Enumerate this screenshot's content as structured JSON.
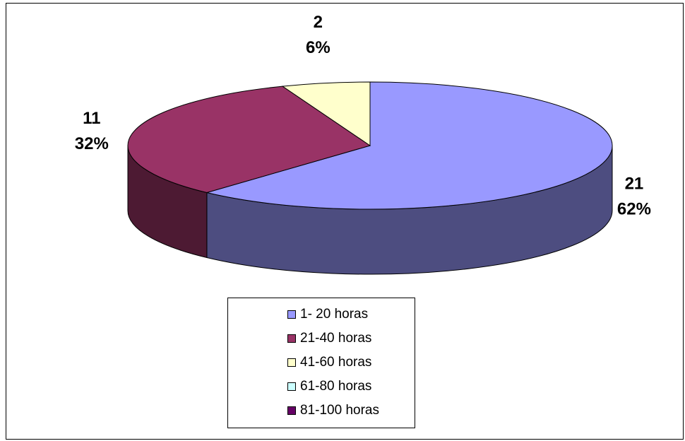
{
  "chart_data": {
    "type": "pie",
    "title": "",
    "categories": [
      "1- 20 horas",
      "21-40 horas",
      "41-60 horas",
      "61-80 horas",
      "81-100 horas"
    ],
    "values": [
      21,
      11,
      2,
      0,
      0
    ],
    "percent_labels": [
      "62%",
      "32%",
      "6%",
      "",
      ""
    ],
    "value_labels": [
      "21",
      "11",
      "2",
      "",
      ""
    ],
    "colors": [
      "#9999ff",
      "#993366",
      "#ffffcc",
      "#ccffff",
      "#660066"
    ],
    "side_colors": [
      "#4d4d80",
      "#4d1a33",
      "#808066",
      "#668080",
      "#330033"
    ],
    "three_d": true,
    "legend_position": "bottom"
  }
}
